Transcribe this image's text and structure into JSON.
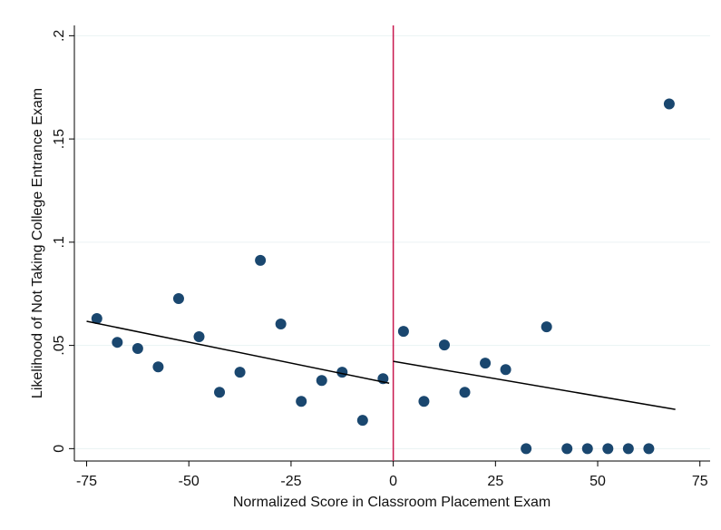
{
  "chart_data": {
    "type": "scatter",
    "x_label": "Normalized Score in Classroom Placement Exam",
    "y_label": "Likelihood of Not Taking College Entrance Exam",
    "xlim": [
      -78,
      77.5
    ],
    "ylim": [
      -0.006,
      0.205
    ],
    "xticks": [
      -75,
      -50,
      -25,
      0,
      25,
      50,
      75
    ],
    "yticks": [
      0,
      {
        "value": 0.05,
        "label": ".05"
      },
      {
        "value": 0.1,
        "label": ".1"
      },
      {
        "value": 0.15,
        "label": ".15"
      },
      {
        "value": 0.2,
        "label": ".2"
      }
    ],
    "grid": true,
    "vline": 0,
    "vline_color": "#c8194f",
    "series": [
      {
        "type": "scatter",
        "color": "#1a476f",
        "x": [
          -72.5,
          -67.5,
          -62.5,
          -57.5,
          -52.5,
          -47.5,
          -42.5,
          -37.5,
          -32.5,
          -27.5,
          -22.5,
          -17.5,
          -12.5,
          -7.5,
          -2.5,
          2.5,
          7.5,
          12.5,
          17.5,
          22.5,
          27.5,
          32.5,
          37.5,
          42.5,
          47.5,
          52.5,
          57.5,
          62.5,
          67.5
        ],
        "values": [
          0.063,
          0.0515,
          0.0485,
          0.0396,
          0.0727,
          0.0542,
          0.0273,
          0.037,
          0.0912,
          0.0604,
          0.0229,
          0.033,
          0.037,
          0.0137,
          0.0339,
          0.0568,
          0.0229,
          0.0502,
          0.0273,
          0.0414,
          0.0383,
          0,
          0.059,
          0,
          0,
          0,
          0,
          0,
          0.167
        ]
      },
      {
        "type": "line",
        "color": "#000000",
        "x": [
          -75,
          -1
        ],
        "values": [
          0.0617,
          0.0317
        ]
      },
      {
        "type": "line",
        "color": "#000000",
        "x": [
          0,
          69
        ],
        "values": [
          0.0423,
          0.019
        ]
      }
    ]
  }
}
